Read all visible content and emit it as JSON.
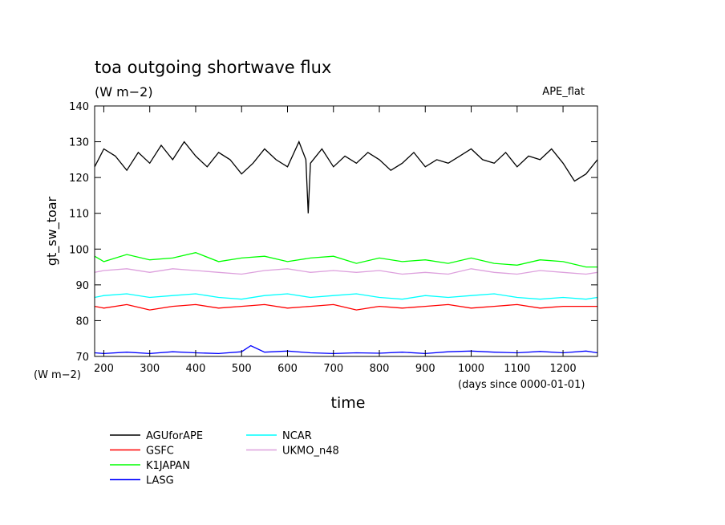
{
  "chart_data": {
    "type": "line",
    "title": "toa outgoing shortwave flux",
    "subtitle": "(W m−2)",
    "dataset_label": "APE_flat",
    "xlabel": "time",
    "x_unit_label": "(days since 0000-01-01)",
    "ylabel": "gt_sw_toar",
    "y_unit_label": "(W m−2)",
    "xlim": [
      180,
      1275
    ],
    "ylim": [
      70,
      140
    ],
    "x_ticks": [
      200,
      300,
      400,
      500,
      600,
      700,
      800,
      900,
      1000,
      1100,
      1200
    ],
    "y_ticks": [
      70,
      80,
      90,
      100,
      110,
      120,
      130,
      140
    ],
    "legend_position": "bottom-left",
    "series": [
      {
        "name": "AGUforAPE",
        "color": "#000000",
        "x": [
          180,
          200,
          225,
          250,
          275,
          300,
          325,
          350,
          375,
          400,
          425,
          450,
          475,
          500,
          525,
          550,
          575,
          600,
          625,
          640,
          645,
          650,
          675,
          700,
          725,
          750,
          775,
          800,
          825,
          850,
          875,
          900,
          925,
          950,
          975,
          1000,
          1025,
          1050,
          1075,
          1100,
          1125,
          1150,
          1175,
          1200,
          1225,
          1250,
          1275
        ],
        "y": [
          123,
          128,
          126,
          122,
          127,
          124,
          129,
          125,
          130,
          126,
          123,
          127,
          125,
          121,
          124,
          128,
          125,
          123,
          130,
          125,
          110,
          124,
          128,
          123,
          126,
          124,
          127,
          125,
          122,
          124,
          127,
          123,
          125,
          124,
          126,
          128,
          125,
          124,
          127,
          123,
          126,
          125,
          128,
          124,
          119,
          121,
          125
        ]
      },
      {
        "name": "GSFC",
        "color": "#ff0000",
        "x": [
          180,
          200,
          250,
          300,
          350,
          400,
          450,
          500,
          550,
          600,
          650,
          700,
          750,
          800,
          850,
          900,
          950,
          1000,
          1050,
          1100,
          1150,
          1200,
          1250,
          1275
        ],
        "y": [
          84,
          83.5,
          84.5,
          83,
          84,
          84.5,
          83.5,
          84,
          84.5,
          83.5,
          84,
          84.5,
          83,
          84,
          83.5,
          84,
          84.5,
          83.5,
          84,
          84.5,
          83.5,
          84,
          84,
          84
        ]
      },
      {
        "name": "K1JAPAN",
        "color": "#00ff00",
        "x": [
          180,
          200,
          250,
          300,
          350,
          400,
          450,
          500,
          550,
          600,
          650,
          700,
          750,
          800,
          850,
          900,
          950,
          1000,
          1050,
          1100,
          1150,
          1200,
          1250,
          1275
        ],
        "y": [
          98,
          96.5,
          98.5,
          97,
          97.5,
          99,
          96.5,
          97.5,
          98,
          96.5,
          97.5,
          98,
          96,
          97.5,
          96.5,
          97,
          96,
          97.5,
          96,
          95.5,
          97,
          96.5,
          95,
          95
        ]
      },
      {
        "name": "LASG",
        "color": "#0000ff",
        "x": [
          180,
          200,
          250,
          300,
          350,
          400,
          450,
          500,
          520,
          550,
          600,
          650,
          700,
          750,
          800,
          850,
          900,
          950,
          1000,
          1050,
          1100,
          1150,
          1200,
          1250,
          1275
        ],
        "y": [
          71,
          70.8,
          71.2,
          70.8,
          71.3,
          71,
          70.8,
          71.3,
          73,
          71.2,
          71.5,
          71,
          70.8,
          71,
          70.9,
          71.2,
          70.8,
          71.3,
          71.5,
          71.2,
          71,
          71.4,
          71,
          71.5,
          71
        ]
      },
      {
        "name": "NCAR",
        "color": "#00ffff",
        "x": [
          180,
          200,
          250,
          300,
          350,
          400,
          450,
          500,
          550,
          600,
          650,
          700,
          750,
          800,
          850,
          900,
          950,
          1000,
          1050,
          1100,
          1150,
          1200,
          1250,
          1275
        ],
        "y": [
          86.5,
          87,
          87.5,
          86.5,
          87,
          87.5,
          86.5,
          86,
          87,
          87.5,
          86.5,
          87,
          87.5,
          86.5,
          86,
          87,
          86.5,
          87,
          87.5,
          86.5,
          86,
          86.5,
          86,
          86.5
        ]
      },
      {
        "name": "UKMO_n48",
        "color": "#dda0dd",
        "x": [
          180,
          200,
          250,
          300,
          350,
          400,
          450,
          500,
          550,
          600,
          650,
          700,
          750,
          800,
          850,
          900,
          950,
          1000,
          1050,
          1100,
          1150,
          1200,
          1250,
          1275
        ],
        "y": [
          93.5,
          94,
          94.5,
          93.5,
          94.5,
          94,
          93.5,
          93,
          94,
          94.5,
          93.5,
          94,
          93.5,
          94,
          93,
          93.5,
          93,
          94.5,
          93.5,
          93,
          94,
          93.5,
          93,
          93.5
        ]
      }
    ]
  }
}
